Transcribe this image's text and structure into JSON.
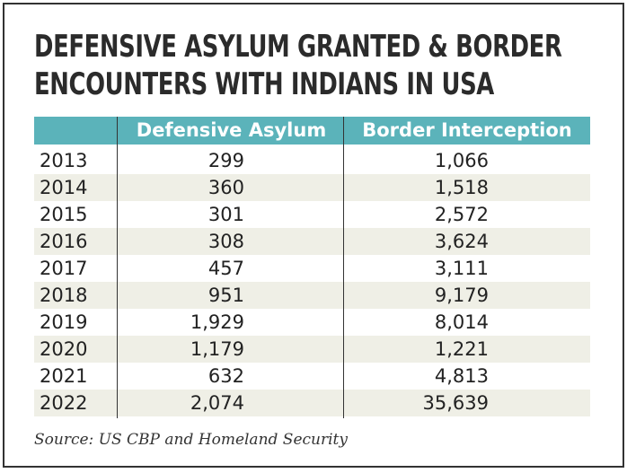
{
  "header": {
    "title_lines": [
      "DEFENSIVE ASYLUM GRANTED & BORDER",
      "ENCOUNTERS WITH INDIANS IN USA"
    ]
  },
  "table": {
    "columns": [
      "Defensive Asylum",
      "Border Interception"
    ],
    "rows": [
      [
        "2013",
        "299",
        "1,066"
      ],
      [
        "2014",
        "360",
        "1,518"
      ],
      [
        "2015",
        "301",
        "2,572"
      ],
      [
        "2016",
        "308",
        "3,624"
      ],
      [
        "2017",
        "457",
        "3,111"
      ],
      [
        "2018",
        "951",
        "9,179"
      ],
      [
        "2019",
        "1,929",
        "8,014"
      ],
      [
        "2020",
        "1,179",
        "1,221"
      ],
      [
        "2021",
        "632",
        "4,813"
      ],
      [
        "2022",
        "2,074",
        "35,639"
      ]
    ]
  },
  "source": "Source: US CBP and Homeland Security"
}
